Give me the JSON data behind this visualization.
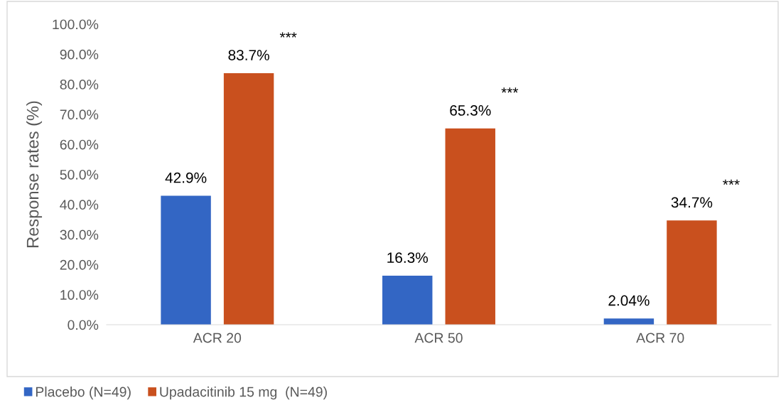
{
  "chart_data": {
    "type": "bar",
    "ylabel": "Response rates (%)",
    "categories": [
      "ACR 20",
      "ACR 50",
      "ACR 70"
    ],
    "series": [
      {
        "name": "Placebo (N=49)",
        "color": "#3366c4",
        "values": [
          42.9,
          16.3,
          2.04
        ],
        "value_labels": [
          "42.9%",
          "16.3%",
          "2.04%"
        ]
      },
      {
        "name": "Upadacitinib 15 mg  (N=49)",
        "color": "#c9501e",
        "values": [
          83.7,
          65.3,
          34.7
        ],
        "value_labels": [
          "83.7%",
          "65.3%",
          "34.7%"
        ]
      }
    ],
    "ylim": [
      0,
      100
    ],
    "yticks": [
      {
        "value": 0,
        "label": "0.0%"
      },
      {
        "value": 10,
        "label": "10.0%"
      },
      {
        "value": 20,
        "label": "20.0%"
      },
      {
        "value": 30,
        "label": "30.0%"
      },
      {
        "value": 40,
        "label": "40.0%"
      },
      {
        "value": 50,
        "label": "50.0%"
      },
      {
        "value": 60,
        "label": "60.0%"
      },
      {
        "value": 70,
        "label": "70.0%"
      },
      {
        "value": 80,
        "label": "80.0%"
      },
      {
        "value": 90,
        "label": "90.0%"
      },
      {
        "value": 100,
        "label": "100.0%"
      }
    ],
    "annotations": [
      "***",
      "***",
      "***"
    ],
    "legend": "bottom",
    "grid": false
  }
}
